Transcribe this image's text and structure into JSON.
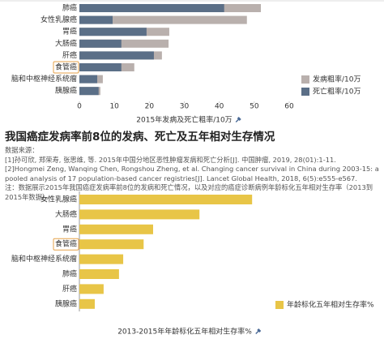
{
  "chart_data": [
    {
      "type": "bar",
      "orientation": "horizontal",
      "categories": [
        "肺癌",
        "女性乳腺癌",
        "胃癌",
        "大肠癌",
        "肝癌",
        "食管癌",
        "脑和中枢神经系统瘤",
        "胰腺癌"
      ],
      "series": [
        {
          "name": "发病粗率/10万",
          "color": "#b9b0ad",
          "values": [
            51.9,
            47.9,
            25.7,
            25.5,
            23.6,
            15.7,
            6.7,
            6.0
          ]
        },
        {
          "name": "死亡粗率/10万",
          "color": "#5b6f87",
          "values": [
            41.4,
            9.5,
            19.2,
            12.0,
            21.3,
            12.0,
            5.1,
            5.5
          ]
        }
      ],
      "xlim": [
        0,
        60
      ],
      "xticks": [
        0,
        10,
        20,
        30,
        40,
        50,
        60
      ],
      "xlabel": "2015年发病及死亡粗率/10万",
      "legend": "lower right",
      "highlight": "食管癌"
    },
    {
      "type": "bar",
      "orientation": "horizontal",
      "categories": [
        "女性乳腺癌",
        "大肠癌",
        "胃癌",
        "食管癌",
        "脑和中枢神经系统瘤",
        "肺癌",
        "肝癌",
        "胰腺癌"
      ],
      "series": [
        {
          "name": "年龄标化五年相对生存率%",
          "color": "#e8c547",
          "values": [
            82.0,
            57.0,
            35.0,
            30.5,
            20.8,
            18.8,
            11.5,
            7.3
          ]
        }
      ],
      "xlim": [
        0,
        100
      ],
      "xlabel": "2013-2015年年龄标化五年相对生存率%",
      "legend": "lower right",
      "highlight": "食管癌"
    }
  ],
  "text": {
    "title": "我国癌症发病率前8位的发病、死亡及五年相对生存情况",
    "source_label": "数据来源：",
    "references": [
      "[1]孙可欣, 郑荣寿, 张思维, 等. 2015年中国分地区恶性肿瘤发病和死亡分析[J]. 中国肿瘤, 2019, 28(01):1-11.",
      "[2]Hongmei Zeng, Wanqing Chen, Rongshou Zheng, et al. Changing cancer survival in China during 2003-15: a pooled analysis  of 17 population-based cancer registries[J]. Lancet Global Health, 2018, 6(5):e555-e567."
    ],
    "note": "注：数据展示2015年我国癌症发病率前8位的发病和死亡情况，以及对应的癌症诊断病例年龄标化五年相对生存率（2013到2015年数据）。"
  }
}
